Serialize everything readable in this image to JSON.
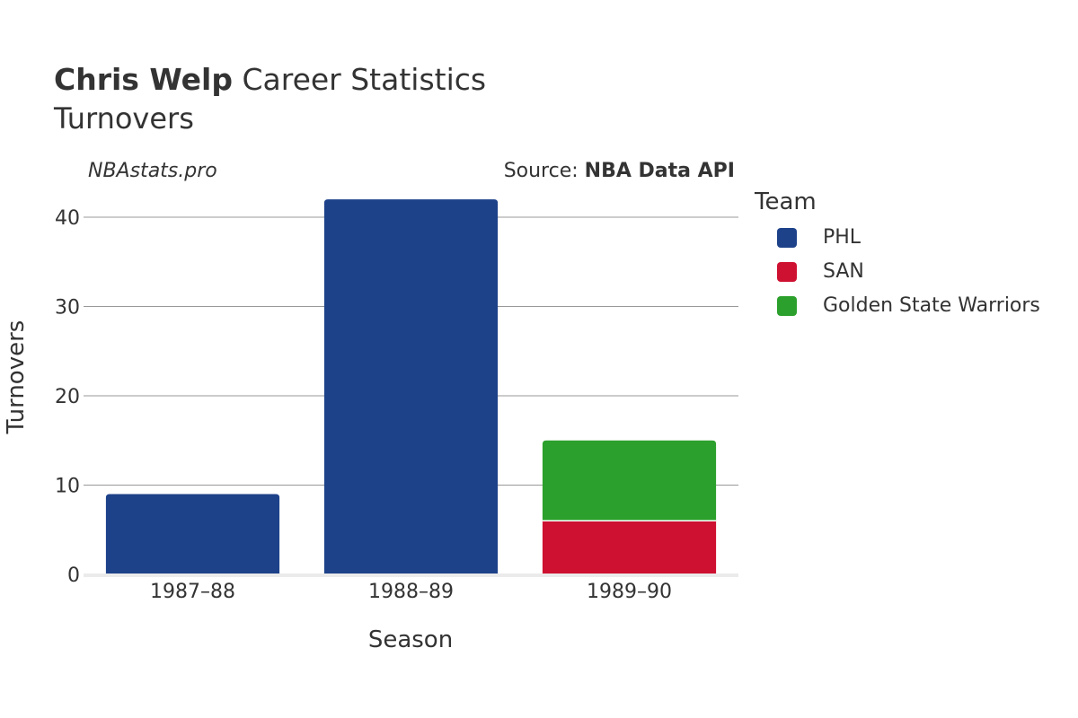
{
  "header": {
    "player_name": "Chris Welp",
    "title_rest": "Career Statistics",
    "subtitle": "Turnovers",
    "watermark": "NBAstats.pro",
    "source_prefix": "Source: ",
    "source_name": "NBA Data API"
  },
  "legend": {
    "title": "Team",
    "items": [
      {
        "label": "PHL",
        "color": "#1d428a"
      },
      {
        "label": "SAN",
        "color": "#ce1131"
      },
      {
        "label": "Golden State Warriors",
        "color": "#2ca02c"
      }
    ]
  },
  "chart_data": {
    "type": "bar",
    "stacked": true,
    "title": "Chris Welp Career Statistics",
    "subtitle": "Turnovers",
    "xlabel": "Season",
    "ylabel": "Turnovers",
    "categories": [
      "1987–88",
      "1988–89",
      "1989–90"
    ],
    "ylim": [
      0,
      44
    ],
    "yticks": [
      0,
      10,
      20,
      30,
      40
    ],
    "grid": true,
    "legend_position": "right",
    "series": [
      {
        "name": "PHL",
        "color": "#1d428a",
        "values": [
          9,
          42,
          0
        ]
      },
      {
        "name": "SAN",
        "color": "#ce1131",
        "values": [
          0,
          0,
          6
        ]
      },
      {
        "name": "Golden State Warriors",
        "color": "#2ca02c",
        "values": [
          0,
          0,
          9
        ]
      }
    ]
  }
}
